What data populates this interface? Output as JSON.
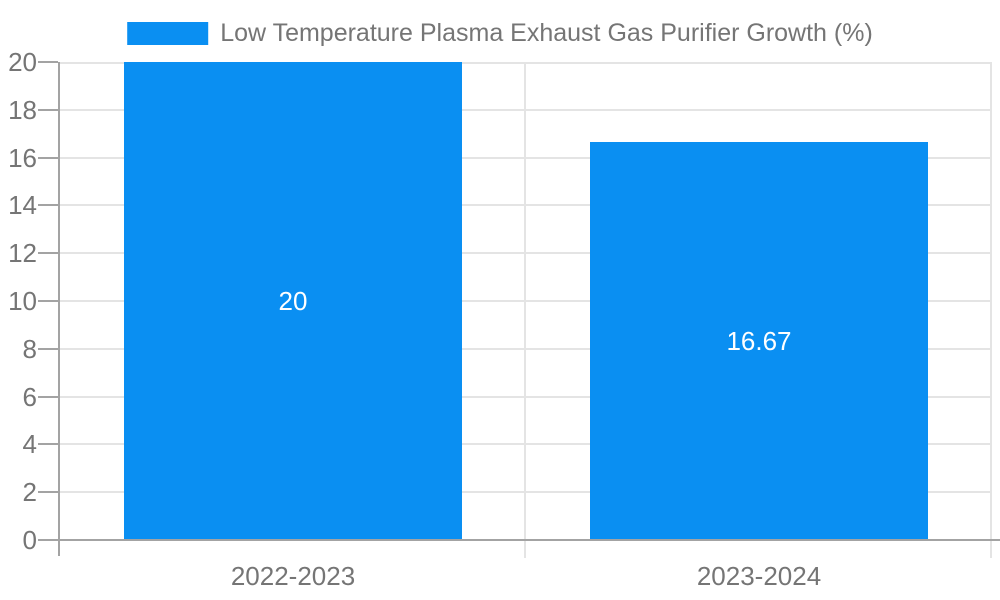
{
  "chart_data": {
    "type": "bar",
    "title": "Low Temperature Plasma Exhaust Gas Purifier Growth (%)",
    "legend": [
      "Low Temperature Plasma Exhaust Gas Purifier Growth (%)"
    ],
    "legend_position": "top",
    "categories": [
      "2022-2023",
      "2023-2024"
    ],
    "values": [
      20,
      16.67
    ],
    "bar_labels": [
      "20",
      "16.67"
    ],
    "xlabel": "",
    "ylabel": "",
    "ylim": [
      0,
      20
    ],
    "yticks": [
      0,
      2,
      4,
      6,
      8,
      10,
      12,
      14,
      16,
      18,
      20
    ],
    "grid": true,
    "colors": {
      "bar": "#0a8ff2",
      "bar_label": "#ffffff",
      "axis_line": "#a3a3a3",
      "gridline": "#e4e4e4",
      "tick_text": "#757575",
      "legend_text": "#757575"
    }
  }
}
